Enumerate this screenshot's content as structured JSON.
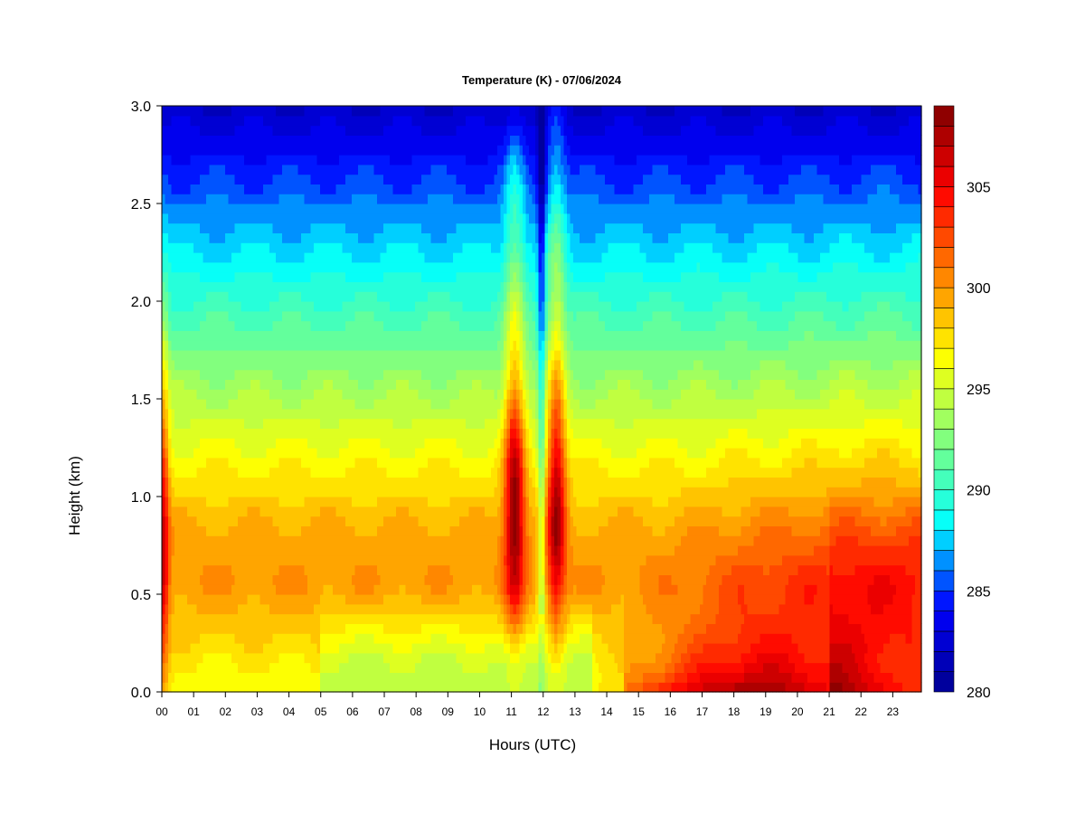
{
  "chart_data": {
    "type": "heatmap",
    "title": "Temperature (K) - 07/06/2024",
    "xlabel": "Hours (UTC)",
    "ylabel": "Height (km)",
    "x_ticks": [
      "00",
      "01",
      "02",
      "03",
      "04",
      "05",
      "06",
      "07",
      "08",
      "09",
      "10",
      "11",
      "12",
      "13",
      "14",
      "15",
      "16",
      "17",
      "18",
      "19",
      "20",
      "21",
      "22",
      "23"
    ],
    "xlim": [
      0,
      23.9
    ],
    "y_ticks": [
      "0.0",
      "0.5",
      "1.0",
      "1.5",
      "2.0",
      "2.5",
      "3.0"
    ],
    "ylim": [
      0,
      3.0
    ],
    "colorbar": {
      "min": 280,
      "max": 309,
      "levels": 29,
      "labels": [
        "280",
        "285",
        "290",
        "295",
        "300",
        "305"
      ]
    },
    "colormap": [
      "#00008f",
      "#0000ff",
      "#00ffff",
      "#80ff80",
      "#ffff00",
      "#ff8000",
      "#ff0000",
      "#800000"
    ],
    "field_samples": [
      {
        "hour": 0.0,
        "profile": {
          "0.0": 300,
          "0.6": 307,
          "1.0": 306,
          "1.5": 300,
          "2.0": 293,
          "2.5": 286,
          "3.0": 283
        }
      },
      {
        "hour": 2.0,
        "profile": {
          "0.0": 297,
          "0.6": 300,
          "1.0": 298,
          "1.5": 294,
          "2.0": 290,
          "2.5": 286,
          "3.0": 282
        }
      },
      {
        "hour": 4.0,
        "profile": {
          "0.0": 297,
          "0.6": 301,
          "1.0": 298,
          "1.5": 294,
          "2.0": 290,
          "2.5": 286,
          "3.0": 282
        }
      },
      {
        "hour": 8.0,
        "profile": {
          "0.0": 296,
          "0.6": 300,
          "1.0": 297,
          "1.5": 294,
          "2.0": 290,
          "2.5": 286,
          "3.0": 282
        }
      },
      {
        "hour": 11.1,
        "profile": {
          "0.0": 292,
          "0.6": 306,
          "1.0": 308,
          "1.5": 304,
          "2.0": 297,
          "2.5": 291,
          "3.0": 289
        }
      },
      {
        "hour": 12.4,
        "profile": {
          "0.0": 293,
          "0.6": 305,
          "1.0": 306,
          "1.5": 302,
          "2.0": 296,
          "2.5": 291,
          "3.0": 289
        }
      },
      {
        "hour": 14.0,
        "profile": {
          "0.0": 296,
          "0.6": 297,
          "1.0": 296,
          "1.5": 293,
          "2.0": 290,
          "2.5": 286,
          "3.0": 282
        }
      },
      {
        "hour": 18.5,
        "profile": {
          "0.0": 307,
          "0.6": 299,
          "1.0": 297,
          "1.5": 294,
          "2.0": 290,
          "2.5": 286,
          "3.0": 282
        }
      },
      {
        "hour": 23.0,
        "profile": {
          "0.0": 303,
          "0.6": 300,
          "1.0": 297,
          "1.5": 294,
          "2.0": 290,
          "2.5": 286,
          "3.0": 282
        }
      }
    ]
  }
}
